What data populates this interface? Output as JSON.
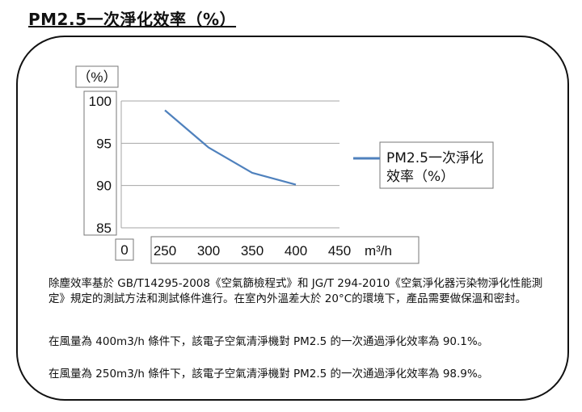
{
  "title": "PM2.5一次淨化效率（%）",
  "chart_data": {
    "type": "line",
    "y_unit_label": "（%）",
    "x_unit_label": "m³/h",
    "x_origin_label": "0",
    "x_ticks": [
      250,
      300,
      350,
      400,
      450
    ],
    "y_ticks": [
      85,
      90,
      95,
      100
    ],
    "ylim": [
      85,
      100
    ],
    "xlim": [
      200,
      450
    ],
    "grid": true,
    "legend_position": "right",
    "series": [
      {
        "name": "PM2.5一次淨化效率（%）",
        "color": "#4F81BD",
        "x": [
          250,
          300,
          350,
          400
        ],
        "values": [
          98.9,
          94.5,
          91.5,
          90.1
        ]
      }
    ]
  },
  "paragraphs": [
    "除塵效率基於 GB/T14295-2008《空氣篩檢程式》和 JG/T 294-2010《空氣淨化器污染物淨化性能測定》規定的測試方法和測試條件進行。在室內外溫差大於 20°C的環境下，產品需要做保溫和密封。",
    "在風量為 400m3/h 條件下，該電子空氣清淨機對 PM2.5 的一次通過淨化效率為 90.1%。",
    "在風量為 250m3/h 條件下，該電子空氣清淨機對 PM2.5 的一次通過淨化效率為 98.9%。"
  ]
}
